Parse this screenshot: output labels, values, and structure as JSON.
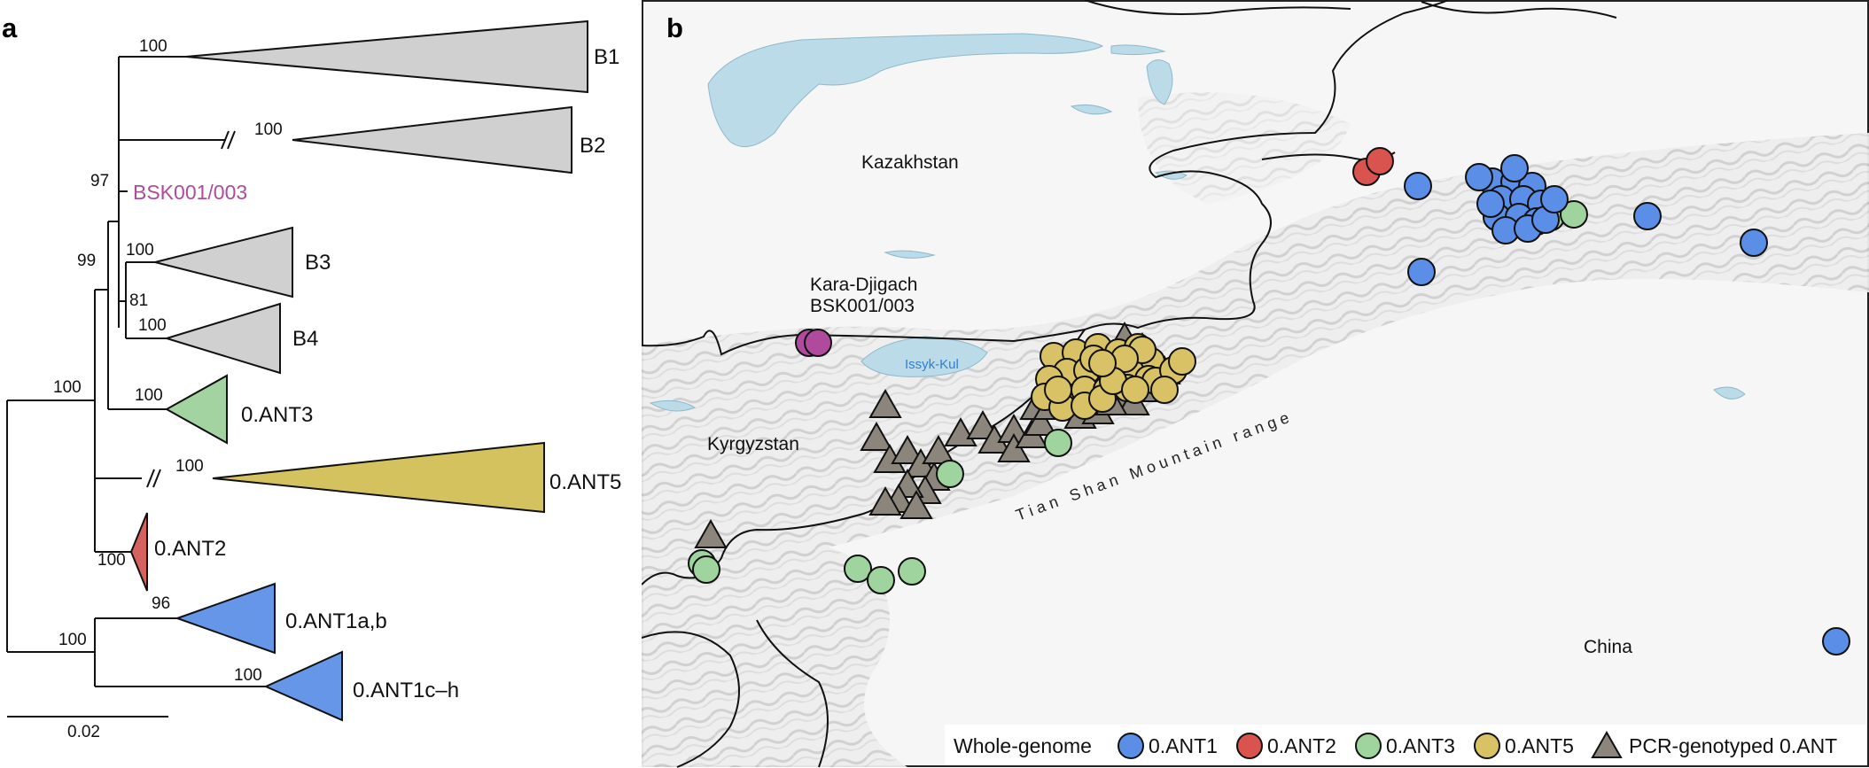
{
  "panel_a": {
    "letter": "a",
    "clades": [
      {
        "id": "b1",
        "label": "B1",
        "bootstrap": "100",
        "color": "#d0d0d0"
      },
      {
        "id": "b2",
        "label": "B2",
        "bootstrap": "100",
        "color": "#d0d0d0"
      },
      {
        "id": "b3",
        "label": "B3",
        "bootstrap": "100",
        "color": "#d0d0d0"
      },
      {
        "id": "b4",
        "label": "B4",
        "bootstrap": "100",
        "color": "#d0d0d0"
      },
      {
        "id": "ant3",
        "label": "0.ANT3",
        "bootstrap": "100",
        "color": "#a2d3a1"
      },
      {
        "id": "ant5",
        "label": "0.ANT5",
        "bootstrap": "100",
        "color": "#d4c25e"
      },
      {
        "id": "ant2",
        "label": "0.ANT2",
        "bootstrap": "100",
        "color": "#d5625e"
      },
      {
        "id": "ant1ab",
        "label": "0.ANT1a,b",
        "bootstrap": "96",
        "color": "#6596e8"
      },
      {
        "id": "ant1ch",
        "label": "0.ANT1c–h",
        "bootstrap": "100",
        "color": "#6596e8"
      }
    ],
    "internal_bootstraps": {
      "n97": "97",
      "n99": "99",
      "n81": "81",
      "n100_a": "100",
      "n100_root": "100"
    },
    "sample": {
      "label": "BSK001/003",
      "color": "#b04a9d"
    },
    "scale_bar": {
      "label": "0.02"
    }
  },
  "panel_b": {
    "letter": "b",
    "country_labels": {
      "kazakhstan": "Kazakhstan",
      "kyrgyzstan": "Kyrgyzstan",
      "china": "China"
    },
    "lake_label": "Issyk-Kul",
    "site_label": [
      "Kara-Djigach",
      "BSK001/003"
    ],
    "range_label": "Tian Shan Mountain range",
    "colors": {
      "ant1": "#5b8ee6",
      "ant2": "#d9534f",
      "ant3": "#9fd49f",
      "ant5": "#d8c265",
      "pcr": "#8b857c",
      "sample": "#b04a9d",
      "water": "#bcdbe8"
    },
    "legend": {
      "title": "Whole-genome",
      "items": [
        {
          "label": "0.ANT1",
          "color": "#5b8ee6",
          "shape": "circle"
        },
        {
          "label": "0.ANT2",
          "color": "#d9534f",
          "shape": "circle"
        },
        {
          "label": "0.ANT3",
          "color": "#9fd49f",
          "shape": "circle"
        },
        {
          "label": "0.ANT5",
          "color": "#d8c265",
          "shape": "circle"
        },
        {
          "label": "PCR-genotyped 0.ANT",
          "color": "#8b857c",
          "shape": "triangle"
        }
      ]
    }
  }
}
